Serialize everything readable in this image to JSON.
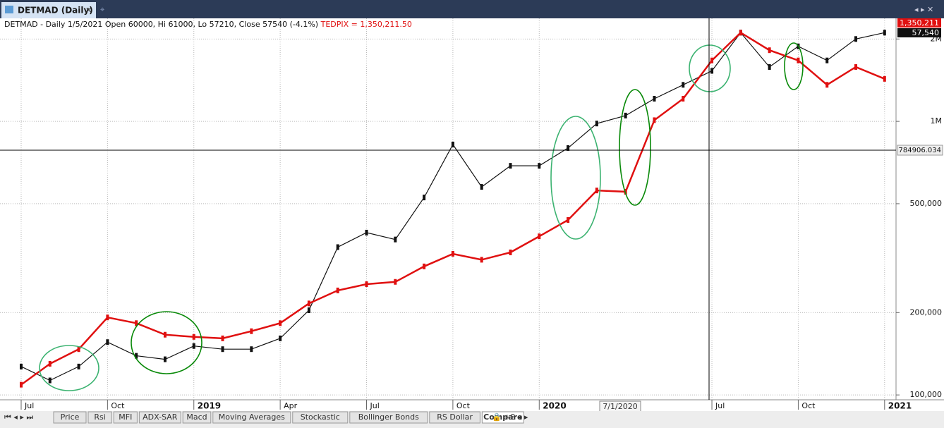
{
  "window": {
    "title": "DETMAD (Daily)"
  },
  "chart_data": {
    "type": "line",
    "info_text": "DETMAD - Daily 1/5/2021 Open 60000, Hi 61000, Lo 57210, Close 57540 (-4.1%)",
    "info_compare": "TEDPIX = 1,350,211.50",
    "x": [
      "2018-07",
      "2018-08",
      "2018-09",
      "2018-10",
      "2018-11",
      "2018-12",
      "2019-01",
      "2019-02",
      "2019-03",
      "2019-04",
      "2019-05",
      "2019-06",
      "2019-07",
      "2019-08",
      "2019-09",
      "2019-10",
      "2019-11",
      "2019-12",
      "2020-01",
      "2020-02",
      "2020-03",
      "2020-04",
      "2020-05",
      "2020-06",
      "2020-07",
      "2020-08",
      "2020-09",
      "2020-10",
      "2020-11",
      "2020-12",
      "2021-01"
    ],
    "series": [
      {
        "color": "#111111",
        "values": [
          127000,
          113000,
          127000,
          156000,
          139000,
          135000,
          151000,
          147000,
          147000,
          161000,
          204000,
          347000,
          392000,
          370000,
          527000,
          823000,
          576000,
          688000,
          688000,
          799000,
          982000,
          1050000,
          1210000,
          1360000,
          1530000,
          2110000,
          1580000,
          1880000,
          1670000,
          2000000,
          2110000
        ]
      },
      {
        "color": "#e01010",
        "values": [
          109000,
          130000,
          147000,
          192000,
          183000,
          166000,
          163000,
          161000,
          171000,
          183000,
          216000,
          241000,
          254000,
          259000,
          295000,
          328000,
          312000,
          332000,
          380000,
          436000,
          559000,
          553000,
          1010000,
          1210000,
          1670000,
          2110000,
          1820000,
          1670000,
          1360000,
          1580000,
          1430000
        ]
      }
    ],
    "log_y": true,
    "xlim": [
      "2018-06",
      "2021-02"
    ],
    "xticks": [
      {
        "value": "2018-07",
        "label": "Jul"
      },
      {
        "value": "2018-10",
        "label": "Oct"
      },
      {
        "value": "2019-01",
        "label": "2019"
      },
      {
        "value": "2019-04",
        "label": "Apr"
      },
      {
        "value": "2019-07",
        "label": "Jul"
      },
      {
        "value": "2019-10",
        "label": "Oct"
      },
      {
        "value": "2020-01",
        "label": "2020"
      },
      {
        "value": "2020-07",
        "label": "Jul"
      },
      {
        "value": "2020-10",
        "label": "Oct"
      },
      {
        "value": "2021-01",
        "label": "2021"
      }
    ],
    "ylim": [
      96000,
      2380000
    ],
    "yticks": [
      {
        "value": 100000,
        "label": "100,000"
      },
      {
        "value": 200000,
        "label": "200,000"
      },
      {
        "value": 500000,
        "label": "500,000"
      },
      {
        "value": 1000000,
        "label": "1M"
      },
      {
        "value": 2000000,
        "label": "2M"
      }
    ],
    "grid": true,
    "last_compare_label": "1,350,211",
    "last_price_label": "57,540",
    "crosshair_label": "784906.034",
    "date_tooltip": "7/1/2020"
  },
  "tabs": [
    "Price",
    "Rsi",
    "MFI",
    "ADX-SAR",
    "Macd",
    "Moving Averages",
    "Stockastic",
    "Bollinger Bonds",
    "RS Dollar",
    "Compare"
  ]
}
